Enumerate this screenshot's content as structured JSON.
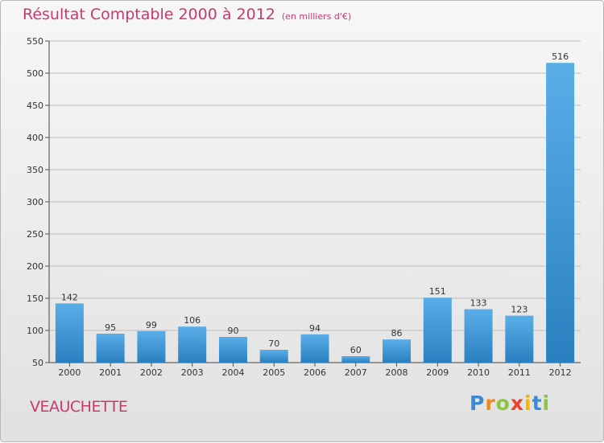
{
  "chart_data": {
    "type": "bar",
    "title": "Résultat Comptable 2000 à 2012",
    "subtitle": "(en milliers d'€)",
    "categories": [
      "2000",
      "2001",
      "2002",
      "2003",
      "2004",
      "2005",
      "2006",
      "2007",
      "2008",
      "2009",
      "2010",
      "2011",
      "2012"
    ],
    "values": [
      142,
      95,
      99,
      106,
      90,
      70,
      94,
      60,
      86,
      151,
      133,
      123,
      516
    ],
    "ylim": [
      50,
      550
    ],
    "yticks": [
      50,
      100,
      150,
      200,
      250,
      300,
      350,
      400,
      450,
      500,
      550
    ],
    "grid": true,
    "colors": {
      "bar_light": "#5aaee8",
      "bar_dark": "#2a7fc0",
      "title": "#c43b6e"
    }
  },
  "location": "VEAUCHETTE",
  "logo": {
    "letters": [
      "P",
      "r",
      "o",
      "x",
      "i",
      "t",
      "i"
    ],
    "colors": [
      "#3a8ad6",
      "#f08a1c",
      "#8cc63f",
      "#e8442c",
      "#f5b400",
      "#3a8ad6",
      "#8cc63f"
    ]
  }
}
